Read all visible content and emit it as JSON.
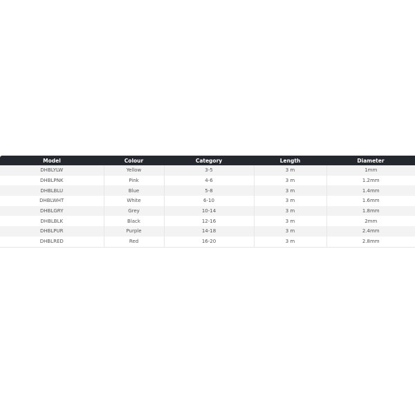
{
  "table": {
    "headers": [
      "Model",
      "Colour",
      "Category",
      "Length",
      "Diameter"
    ],
    "rows": [
      [
        "DHBLYLW",
        "Yellow",
        "3-5",
        "3 m",
        "1mm"
      ],
      [
        "DHBLPNK",
        "Pink",
        "4-6",
        "3 m",
        "1.2mm"
      ],
      [
        "DHBLBLU",
        "Blue",
        "5-8",
        "3 m",
        "1.4mm"
      ],
      [
        "DHBLWHT",
        "White",
        "6-10",
        "3 m",
        "1.6mm"
      ],
      [
        "DHBLGRY",
        "Grey",
        "10-14",
        "3 m",
        "1.8mm"
      ],
      [
        "DHBLBLK",
        "Black",
        "12-16",
        "3 m",
        "2mm"
      ],
      [
        "DHBLPUR",
        "Purple",
        "14-18",
        "3 m",
        "2.4mm"
      ],
      [
        "DHBLRED",
        "Red",
        "16-20",
        "3 m",
        "2.8mm"
      ]
    ]
  }
}
